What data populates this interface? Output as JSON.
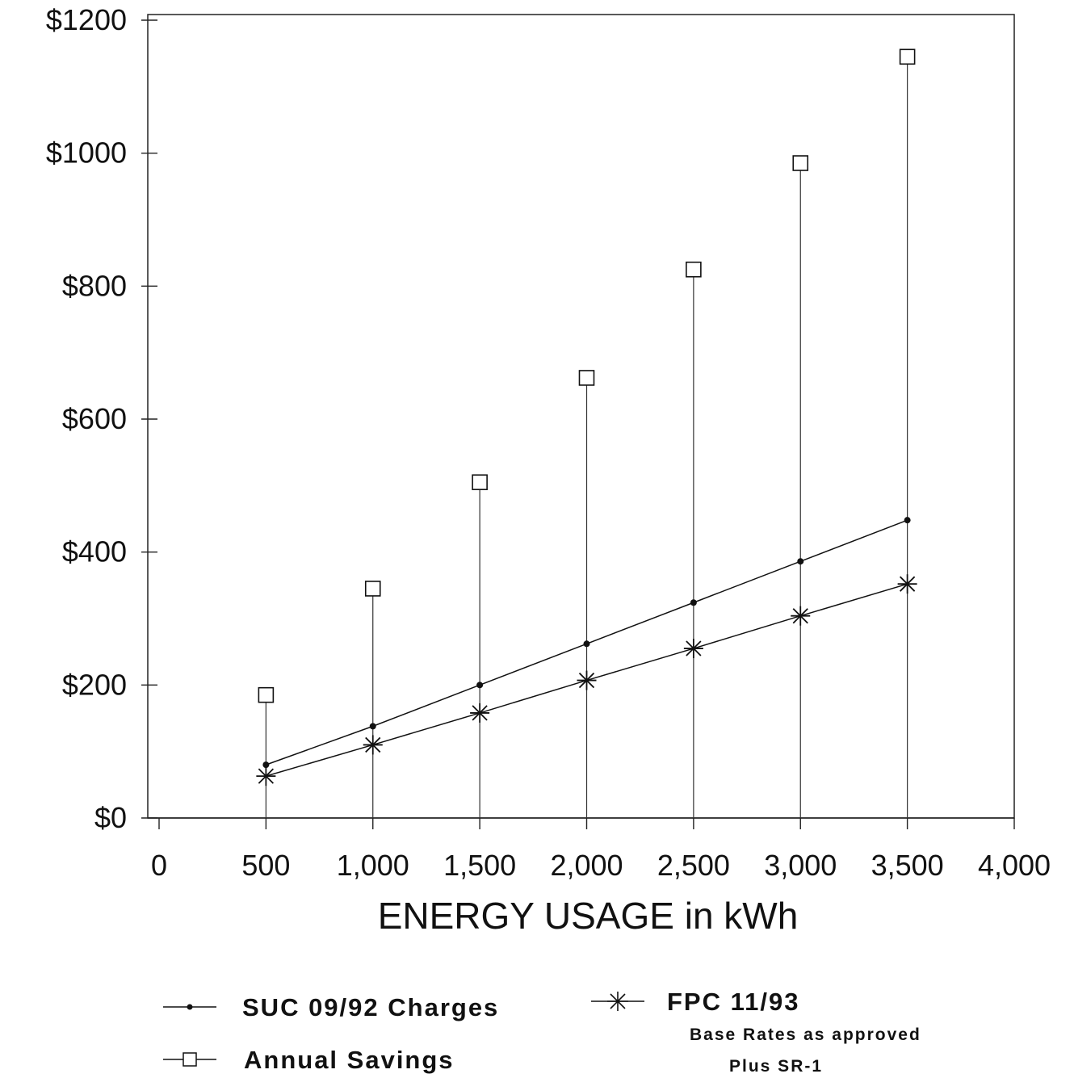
{
  "chart_data": {
    "type": "line",
    "title": "",
    "xlabel": "ENERGY USAGE in kWh",
    "ylabel": "",
    "x": [
      500,
      1000,
      1500,
      2000,
      2500,
      3000,
      3500
    ],
    "xlim": [
      0,
      4000
    ],
    "ylim": [
      0,
      1200
    ],
    "x_tick_labels": [
      "0",
      "500",
      "1,000",
      "1,500",
      "2,000",
      "2,500",
      "3,000",
      "3,500",
      "4,000"
    ],
    "x_ticks": [
      0,
      500,
      1000,
      1500,
      2000,
      2500,
      3000,
      3500,
      4000
    ],
    "y_tick_labels": [
      "$0",
      "$200",
      "$400",
      "$600",
      "$800",
      "$1000",
      "$1200"
    ],
    "y_ticks": [
      0,
      200,
      400,
      600,
      800,
      1000,
      1200
    ],
    "grid": false,
    "legend_position": "bottom",
    "series": [
      {
        "name": "SUC 09/92 Charges",
        "marker": "dot",
        "style": "line",
        "color": "#111111",
        "values": [
          80,
          138,
          200,
          262,
          324,
          386,
          448
        ]
      },
      {
        "name": "FPC 11/93",
        "note": [
          "Base Rates as approved",
          "Plus SR-1"
        ],
        "marker": "star",
        "style": "line",
        "color": "#111111",
        "values": [
          63,
          110,
          158,
          207,
          255,
          304,
          352
        ]
      },
      {
        "name": "Annual Savings",
        "marker": "square",
        "style": "stem",
        "color": "#111111",
        "values": [
          185,
          345,
          505,
          662,
          825,
          985,
          1145
        ]
      }
    ]
  }
}
